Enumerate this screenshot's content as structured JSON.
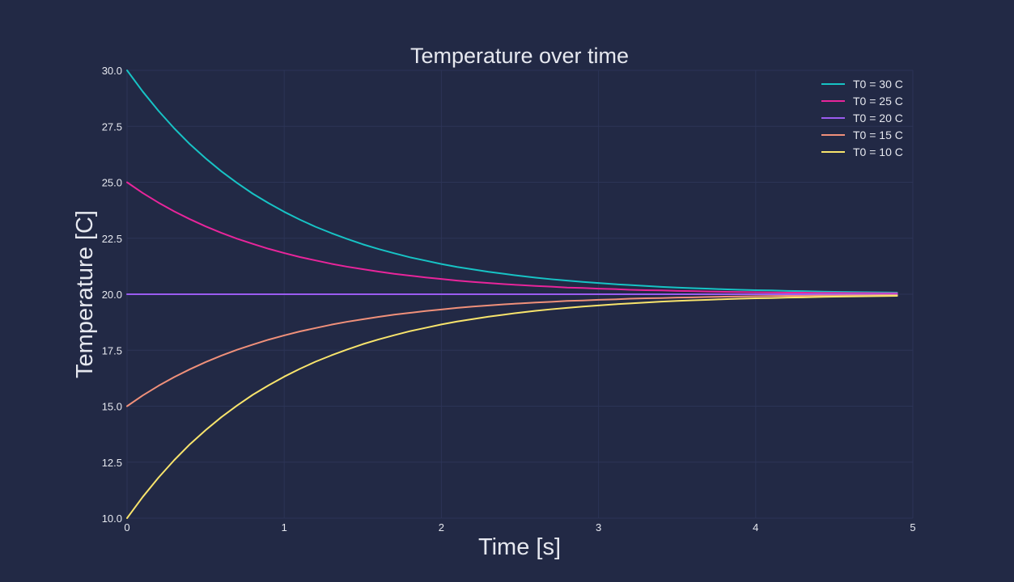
{
  "chart_data": {
    "type": "line",
    "title": "Temperature over time",
    "xlabel": "Time [s]",
    "ylabel": "Temperature [C]",
    "xlim": [
      0,
      5
    ],
    "ylim": [
      10,
      30
    ],
    "x_ticks": [
      "0",
      "1",
      "2",
      "3",
      "4",
      "5"
    ],
    "y_ticks": [
      "10.0",
      "12.5",
      "15.0",
      "17.5",
      "20.0",
      "22.5",
      "25.0",
      "27.5",
      "30.0"
    ],
    "grid": true,
    "legend_position": "top-right",
    "background_color": "#222945",
    "x": [
      0,
      0.1,
      0.2,
      0.3,
      0.4,
      0.5,
      0.6,
      0.7,
      0.8,
      0.9,
      1.0,
      1.1,
      1.2,
      1.3,
      1.4,
      1.5,
      1.6,
      1.7,
      1.8,
      1.9,
      2.0,
      2.1,
      2.2,
      2.3,
      2.4,
      2.5,
      2.6,
      2.7,
      2.8,
      2.9,
      3.0,
      3.1,
      3.2,
      3.3,
      3.4,
      3.5,
      3.6,
      3.7,
      3.8,
      3.9,
      4.0,
      4.1,
      4.2,
      4.3,
      4.4,
      4.5,
      4.6,
      4.7,
      4.8,
      4.9
    ],
    "series": [
      {
        "name": "T0 = 30 C",
        "color": "#17c3c5",
        "values": [
          30.0,
          29.05,
          28.19,
          27.41,
          26.7,
          26.07,
          25.49,
          24.97,
          24.49,
          24.07,
          23.68,
          23.33,
          23.01,
          22.73,
          22.47,
          22.23,
          22.02,
          21.83,
          21.65,
          21.5,
          21.35,
          21.22,
          21.11,
          21.0,
          20.91,
          20.82,
          20.74,
          20.67,
          20.61,
          20.55,
          20.5,
          20.45,
          20.41,
          20.37,
          20.33,
          20.3,
          20.27,
          20.25,
          20.22,
          20.2,
          20.18,
          20.17,
          20.15,
          20.14,
          20.12,
          20.11,
          20.1,
          20.09,
          20.08,
          20.07
        ]
      },
      {
        "name": "T0 = 25 C",
        "color": "#e8259b",
        "values": [
          25.0,
          24.52,
          24.09,
          23.7,
          23.35,
          23.03,
          22.74,
          22.48,
          22.25,
          22.03,
          21.84,
          21.66,
          21.51,
          21.36,
          21.23,
          21.12,
          21.01,
          20.91,
          20.83,
          20.75,
          20.68,
          20.61,
          20.55,
          20.5,
          20.45,
          20.41,
          20.37,
          20.34,
          20.3,
          20.28,
          20.25,
          20.23,
          20.2,
          20.18,
          20.17,
          20.15,
          20.14,
          20.12,
          20.11,
          20.1,
          20.09,
          20.08,
          20.07,
          20.07,
          20.06,
          20.06,
          20.05,
          20.05,
          20.04,
          20.04
        ]
      },
      {
        "name": "T0 = 20 C",
        "color": "#9b5cf0",
        "values": [
          20.0,
          20.0,
          20.0,
          20.0,
          20.0,
          20.0,
          20.0,
          20.0,
          20.0,
          20.0,
          20.0,
          20.0,
          20.0,
          20.0,
          20.0,
          20.0,
          20.0,
          20.0,
          20.0,
          20.0,
          20.0,
          20.0,
          20.0,
          20.0,
          20.0,
          20.0,
          20.0,
          20.0,
          20.0,
          20.0,
          20.0,
          20.0,
          20.0,
          20.0,
          20.0,
          20.0,
          20.0,
          20.0,
          20.0,
          20.0,
          20.0,
          20.0,
          20.0,
          20.0,
          20.0,
          20.0,
          20.0,
          20.0,
          20.0,
          20.0
        ]
      },
      {
        "name": "T0 = 15 C",
        "color": "#f0907a",
        "values": [
          15.0,
          15.48,
          15.91,
          16.3,
          16.65,
          16.97,
          17.26,
          17.52,
          17.75,
          17.97,
          18.16,
          18.34,
          18.49,
          18.64,
          18.77,
          18.88,
          18.99,
          19.09,
          19.17,
          19.25,
          19.32,
          19.39,
          19.45,
          19.5,
          19.55,
          19.59,
          19.63,
          19.66,
          19.7,
          19.72,
          19.75,
          19.77,
          19.8,
          19.82,
          19.83,
          19.85,
          19.86,
          19.88,
          19.89,
          19.9,
          19.91,
          19.92,
          19.93,
          19.93,
          19.94,
          19.94,
          19.95,
          19.95,
          19.96,
          19.96
        ]
      },
      {
        "name": "T0 = 10 C",
        "color": "#f8e46c",
        "values": [
          10.0,
          10.95,
          11.81,
          12.59,
          13.3,
          13.93,
          14.51,
          15.03,
          15.51,
          15.93,
          16.32,
          16.67,
          16.99,
          17.27,
          17.53,
          17.77,
          17.98,
          18.17,
          18.35,
          18.5,
          18.65,
          18.78,
          18.89,
          19.0,
          19.09,
          19.18,
          19.26,
          19.33,
          19.39,
          19.45,
          19.5,
          19.55,
          19.59,
          19.63,
          19.67,
          19.7,
          19.73,
          19.75,
          19.78,
          19.8,
          19.82,
          19.83,
          19.85,
          19.86,
          19.88,
          19.89,
          19.9,
          19.91,
          19.92,
          19.93
        ]
      }
    ]
  }
}
